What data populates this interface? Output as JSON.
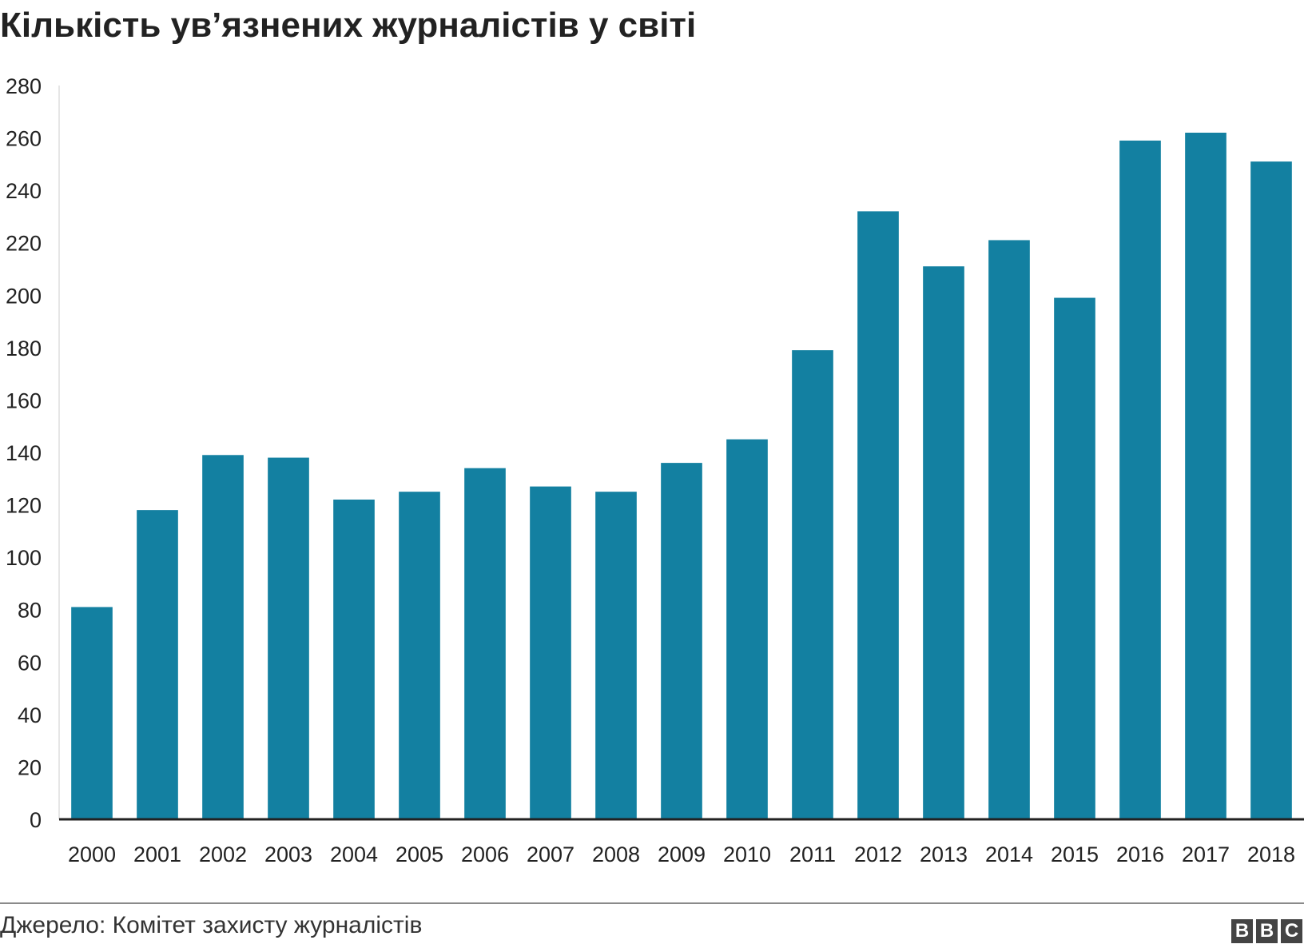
{
  "chart_data": {
    "type": "bar",
    "title": "Кількість ув’язнених журналістів у світі",
    "xlabel": "",
    "ylabel": "",
    "categories": [
      "2000",
      "2001",
      "2002",
      "2003",
      "2004",
      "2005",
      "2006",
      "2007",
      "2008",
      "2009",
      "2010",
      "2011",
      "2012",
      "2013",
      "2014",
      "2015",
      "2016",
      "2017",
      "2018"
    ],
    "series": [
      {
        "values": [
          81,
          118,
          139,
          138,
          122,
          125,
          134,
          127,
          125,
          136,
          145,
          179,
          232,
          211,
          221,
          199,
          259,
          262,
          251
        ]
      }
    ],
    "ylim": [
      0,
      280
    ],
    "yticks": [
      "0",
      "20",
      "40",
      "60",
      "80",
      "100",
      "120",
      "140",
      "160",
      "180",
      "200",
      "220",
      "240",
      "260",
      "280"
    ],
    "bar_color": "#1380a1",
    "axis_color": "#222222",
    "grid": false,
    "legend": "none"
  },
  "footer": {
    "source": "Джерело: Комітет захисту журналістів",
    "logo_letters": [
      "B",
      "B",
      "C"
    ],
    "logo_color": "#444444"
  }
}
